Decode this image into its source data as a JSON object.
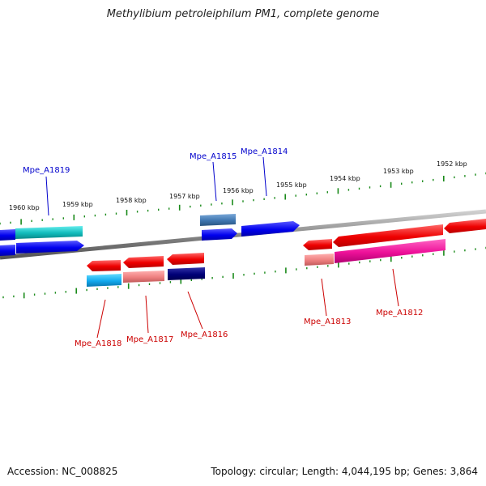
{
  "title": "Methylibium petroleiphilum PM1, complete genome",
  "footer": {
    "accession": "Accession: NC_008825",
    "summary": "Topology: circular; Length: 4,044,195 bp; Genes: 3,864"
  },
  "kbp_labels": [
    "1960 kbp",
    "1959 kbp",
    "1958 kbp",
    "1957 kbp",
    "1956 kbp",
    "1955 kbp",
    "1954 kbp",
    "1953 kbp",
    "1952 kbp"
  ],
  "gene_labels": {
    "top": [
      "Mpe_A1819",
      "Mpe_A1815",
      "Mpe_A1814"
    ],
    "bottom": [
      "Mpe_A1818",
      "Mpe_A1817",
      "Mpe_A1816",
      "Mpe_A1813",
      "Mpe_A1812"
    ]
  },
  "colors": {
    "forward_label": "#0000cc",
    "reverse_label": "#cc0000",
    "tick": "#1a8a1a",
    "backbone": "#808080"
  }
}
